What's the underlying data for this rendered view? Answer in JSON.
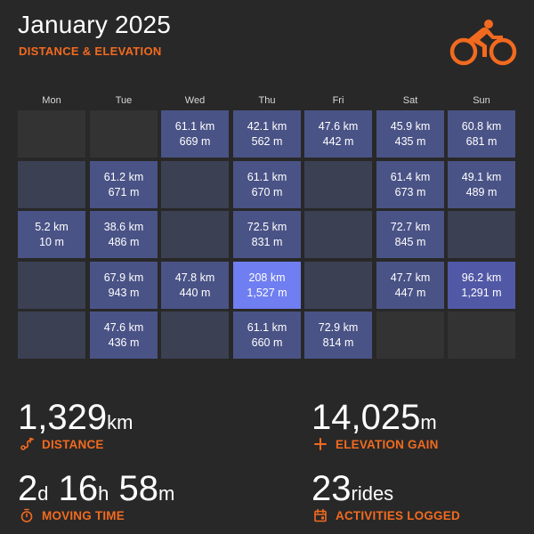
{
  "header": {
    "title": "January 2025",
    "subtitle": "DISTANCE & ELEVATION",
    "logo_icon": "cyclist-icon"
  },
  "colors": {
    "accent": "#f26a1f",
    "background": "#282828",
    "empty_cell": "#333333",
    "no_ride_cell": "#3b4053",
    "ride_cell": "#4a5386",
    "ride_cell_high": "#5158a6",
    "ride_cell_max": "#6f7ef0"
  },
  "weekdays": [
    "Mon",
    "Tue",
    "Wed",
    "Thu",
    "Fri",
    "Sat",
    "Sun"
  ],
  "calendar": {
    "weeks": [
      [
        {
          "status": "empty"
        },
        {
          "status": "empty"
        },
        {
          "status": "ride",
          "distance": "61.1 km",
          "elevation": "669 m",
          "intensity": 1
        },
        {
          "status": "ride",
          "distance": "42.1 km",
          "elevation": "562 m",
          "intensity": 1
        },
        {
          "status": "ride",
          "distance": "47.6 km",
          "elevation": "442 m",
          "intensity": 1
        },
        {
          "status": "ride",
          "distance": "45.9 km",
          "elevation": "435 m",
          "intensity": 1
        },
        {
          "status": "ride",
          "distance": "60.8 km",
          "elevation": "681 m",
          "intensity": 1
        }
      ],
      [
        {
          "status": "none"
        },
        {
          "status": "ride",
          "distance": "61.2 km",
          "elevation": "671 m",
          "intensity": 1
        },
        {
          "status": "none"
        },
        {
          "status": "ride",
          "distance": "61.1 km",
          "elevation": "670 m",
          "intensity": 1
        },
        {
          "status": "none"
        },
        {
          "status": "ride",
          "distance": "61.4 km",
          "elevation": "673 m",
          "intensity": 1
        },
        {
          "status": "ride",
          "distance": "49.1 km",
          "elevation": "489 m",
          "intensity": 1
        }
      ],
      [
        {
          "status": "ride",
          "distance": "5.2 km",
          "elevation": "10 m",
          "intensity": 0
        },
        {
          "status": "ride",
          "distance": "38.6 km",
          "elevation": "486 m",
          "intensity": 1
        },
        {
          "status": "none"
        },
        {
          "status": "ride",
          "distance": "72.5 km",
          "elevation": "831 m",
          "intensity": 1
        },
        {
          "status": "none"
        },
        {
          "status": "ride",
          "distance": "72.7 km",
          "elevation": "845 m",
          "intensity": 1
        },
        {
          "status": "none"
        }
      ],
      [
        {
          "status": "none"
        },
        {
          "status": "ride",
          "distance": "67.9 km",
          "elevation": "943 m",
          "intensity": 1
        },
        {
          "status": "ride",
          "distance": "47.8 km",
          "elevation": "440 m",
          "intensity": 1
        },
        {
          "status": "ride",
          "distance": "208 km",
          "elevation": "1,527 m",
          "intensity": 3
        },
        {
          "status": "none"
        },
        {
          "status": "ride",
          "distance": "47.7 km",
          "elevation": "447 m",
          "intensity": 1
        },
        {
          "status": "ride",
          "distance": "96.2 km",
          "elevation": "1,291 m",
          "intensity": 2
        }
      ],
      [
        {
          "status": "none"
        },
        {
          "status": "ride",
          "distance": "47.6 km",
          "elevation": "436 m",
          "intensity": 1
        },
        {
          "status": "none"
        },
        {
          "status": "ride",
          "distance": "61.1 km",
          "elevation": "660 m",
          "intensity": 1
        },
        {
          "status": "ride",
          "distance": "72.9 km",
          "elevation": "814 m",
          "intensity": 1
        },
        {
          "status": "empty"
        },
        {
          "status": "empty"
        }
      ]
    ]
  },
  "stats": {
    "distance": {
      "value": "1,329",
      "unit": "km",
      "label": "DISTANCE",
      "icon": "route-icon"
    },
    "elevation": {
      "value": "14,025",
      "unit": "m",
      "label": "ELEVATION GAIN",
      "icon": "plus-icon"
    },
    "moving_time": {
      "days": "2",
      "days_unit": "d",
      "hours": "16",
      "hours_unit": "h",
      "minutes": "58",
      "minutes_unit": "m",
      "label": "MOVING TIME",
      "icon": "stopwatch-icon"
    },
    "activities": {
      "value": "23",
      "unit": "rides",
      "label": "ACTIVITIES LOGGED",
      "icon": "calendar-icon"
    }
  }
}
